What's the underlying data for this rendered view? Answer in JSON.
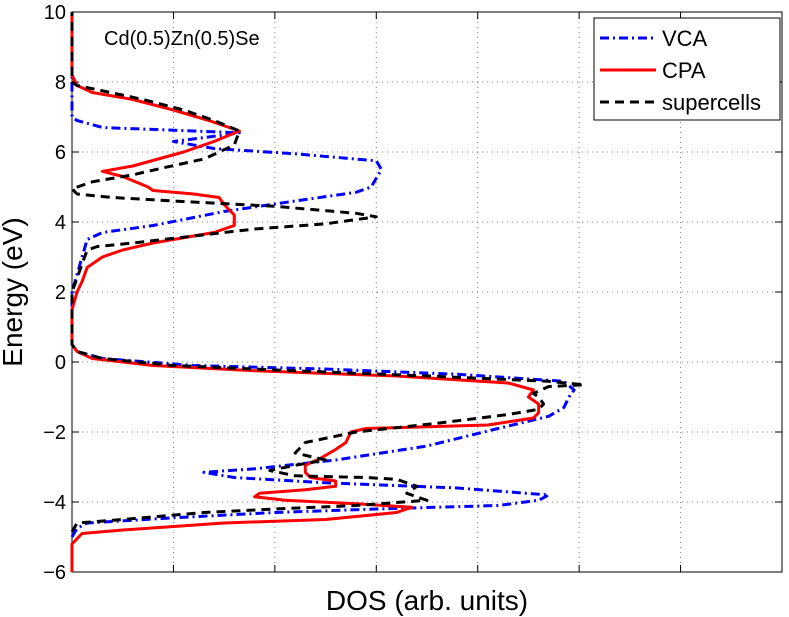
{
  "chart_data": {
    "type": "line",
    "title": "",
    "annotation": "Cd(0.5)Zn(0.5)Se",
    "xlabel": "DOS (arb. units)",
    "ylabel": "Energy (eV)",
    "xlim": [
      0,
      7
    ],
    "ylim": [
      -6,
      10
    ],
    "x_ticks": [
      0,
      1,
      2,
      3,
      4,
      5,
      6,
      7
    ],
    "y_ticks": [
      -6,
      -4,
      -2,
      0,
      2,
      4,
      6,
      8,
      10
    ],
    "y_tick_labels": [
      "−6",
      "−4",
      "−2",
      "0",
      "2",
      "4",
      "6",
      "8",
      "10"
    ],
    "grid": true,
    "legend_position": "top-right",
    "series": [
      {
        "name": "VCA",
        "color": "#0000ff",
        "style": "dashdot",
        "points": [
          [
            0.0,
            -5.0
          ],
          [
            0.05,
            -4.75
          ],
          [
            0.15,
            -4.6
          ],
          [
            1.0,
            -4.45
          ],
          [
            2.0,
            -4.3
          ],
          [
            3.0,
            -4.2
          ],
          [
            4.2,
            -4.1
          ],
          [
            4.6,
            -3.95
          ],
          [
            4.7,
            -3.8
          ],
          [
            3.8,
            -3.6
          ],
          [
            2.5,
            -3.45
          ],
          [
            1.6,
            -3.3
          ],
          [
            1.3,
            -3.15
          ],
          [
            1.8,
            -3.05
          ],
          [
            2.6,
            -2.8
          ],
          [
            3.5,
            -2.4
          ],
          [
            4.2,
            -1.9
          ],
          [
            4.7,
            -1.55
          ],
          [
            4.85,
            -1.3
          ],
          [
            4.9,
            -1.0
          ],
          [
            4.95,
            -0.8
          ],
          [
            4.85,
            -0.55
          ],
          [
            3.8,
            -0.35
          ],
          [
            2.5,
            -0.2
          ],
          [
            1.2,
            -0.1
          ],
          [
            0.3,
            0.1
          ],
          [
            0.05,
            0.3
          ],
          [
            0.0,
            0.5
          ],
          [
            0.0,
            2.0
          ],
          [
            0.05,
            2.5
          ],
          [
            0.1,
            3.0
          ],
          [
            0.15,
            3.5
          ],
          [
            0.3,
            3.7
          ],
          [
            0.8,
            3.9
          ],
          [
            1.5,
            4.3
          ],
          [
            2.2,
            4.6
          ],
          [
            2.8,
            4.85
          ],
          [
            2.95,
            5.0
          ],
          [
            3.05,
            5.5
          ],
          [
            3.0,
            5.75
          ],
          [
            2.2,
            5.95
          ],
          [
            1.4,
            6.1
          ],
          [
            1.0,
            6.3
          ],
          [
            1.4,
            6.45
          ],
          [
            1.65,
            6.55
          ],
          [
            1.2,
            6.6
          ],
          [
            0.3,
            6.7
          ],
          [
            0.05,
            6.9
          ],
          [
            0.0,
            7.0
          ],
          [
            0.0,
            8.0
          ],
          [
            0.0,
            10.0
          ]
        ]
      },
      {
        "name": "CPA",
        "color": "#ff0000",
        "style": "solid",
        "points": [
          [
            0.0,
            -6.0
          ],
          [
            0.0,
            -5.2
          ],
          [
            0.1,
            -4.9
          ],
          [
            0.5,
            -4.8
          ],
          [
            1.5,
            -4.6
          ],
          [
            2.5,
            -4.5
          ],
          [
            3.2,
            -4.3
          ],
          [
            3.35,
            -4.15
          ],
          [
            2.8,
            -4.05
          ],
          [
            2.1,
            -3.95
          ],
          [
            1.8,
            -3.85
          ],
          [
            1.85,
            -3.75
          ],
          [
            2.3,
            -3.65
          ],
          [
            2.6,
            -3.55
          ],
          [
            2.6,
            -3.4
          ],
          [
            2.35,
            -3.3
          ],
          [
            2.3,
            -3.15
          ],
          [
            2.3,
            -2.95
          ],
          [
            2.45,
            -2.75
          ],
          [
            2.6,
            -2.5
          ],
          [
            2.7,
            -2.3
          ],
          [
            2.75,
            -2.0
          ],
          [
            2.9,
            -1.9
          ],
          [
            4.1,
            -1.8
          ],
          [
            4.55,
            -1.6
          ],
          [
            4.6,
            -1.45
          ],
          [
            4.6,
            -1.2
          ],
          [
            4.5,
            -1.0
          ],
          [
            4.55,
            -0.8
          ],
          [
            4.3,
            -0.6
          ],
          [
            3.2,
            -0.4
          ],
          [
            1.8,
            -0.25
          ],
          [
            0.8,
            -0.1
          ],
          [
            0.2,
            0.1
          ],
          [
            0.05,
            0.3
          ],
          [
            0.0,
            0.5
          ],
          [
            0.0,
            1.5
          ],
          [
            0.05,
            2.0
          ],
          [
            0.1,
            2.3
          ],
          [
            0.15,
            2.7
          ],
          [
            0.3,
            3.0
          ],
          [
            0.5,
            3.2
          ],
          [
            0.8,
            3.4
          ],
          [
            1.4,
            3.7
          ],
          [
            1.6,
            3.9
          ],
          [
            1.6,
            4.2
          ],
          [
            1.5,
            4.5
          ],
          [
            1.45,
            4.7
          ],
          [
            1.2,
            4.8
          ],
          [
            0.8,
            4.9
          ],
          [
            0.75,
            5.0
          ],
          [
            0.5,
            5.3
          ],
          [
            0.3,
            5.45
          ],
          [
            0.6,
            5.6
          ],
          [
            0.85,
            5.8
          ],
          [
            1.1,
            6.0
          ],
          [
            1.4,
            6.3
          ],
          [
            1.65,
            6.6
          ],
          [
            1.35,
            6.9
          ],
          [
            1.0,
            7.2
          ],
          [
            0.6,
            7.5
          ],
          [
            0.2,
            7.7
          ],
          [
            0.05,
            7.9
          ],
          [
            0.0,
            8.2
          ],
          [
            0.0,
            10.0
          ]
        ]
      },
      {
        "name": "supercells",
        "color": "#000000",
        "style": "dashed",
        "points": [
          [
            0.0,
            -4.85
          ],
          [
            0.05,
            -4.6
          ],
          [
            0.5,
            -4.5
          ],
          [
            1.3,
            -4.3
          ],
          [
            2.0,
            -4.2
          ],
          [
            2.8,
            -4.1
          ],
          [
            3.5,
            -3.95
          ],
          [
            3.3,
            -3.75
          ],
          [
            3.4,
            -3.55
          ],
          [
            3.2,
            -3.35
          ],
          [
            2.9,
            -3.3
          ],
          [
            2.2,
            -3.25
          ],
          [
            1.95,
            -3.1
          ],
          [
            2.2,
            -2.95
          ],
          [
            2.5,
            -2.8
          ],
          [
            2.2,
            -2.6
          ],
          [
            2.3,
            -2.3
          ],
          [
            2.8,
            -2.0
          ],
          [
            3.6,
            -1.75
          ],
          [
            4.3,
            -1.5
          ],
          [
            4.6,
            -1.35
          ],
          [
            4.65,
            -1.2
          ],
          [
            4.6,
            -1.0
          ],
          [
            4.55,
            -0.9
          ],
          [
            4.7,
            -0.7
          ],
          [
            5.05,
            -0.65
          ],
          [
            4.7,
            -0.55
          ],
          [
            3.5,
            -0.4
          ],
          [
            2.2,
            -0.25
          ],
          [
            1.0,
            -0.1
          ],
          [
            0.3,
            0.1
          ],
          [
            0.05,
            0.3
          ],
          [
            0.0,
            0.5
          ],
          [
            0.0,
            2.0
          ],
          [
            0.05,
            2.4
          ],
          [
            0.1,
            2.8
          ],
          [
            0.15,
            3.2
          ],
          [
            0.25,
            3.3
          ],
          [
            0.6,
            3.4
          ],
          [
            1.2,
            3.6
          ],
          [
            1.8,
            3.8
          ],
          [
            2.5,
            3.95
          ],
          [
            3.0,
            4.15
          ],
          [
            2.8,
            4.25
          ],
          [
            2.0,
            4.45
          ],
          [
            1.0,
            4.6
          ],
          [
            0.4,
            4.7
          ],
          [
            0.05,
            4.8
          ],
          [
            0.0,
            4.95
          ],
          [
            0.2,
            5.15
          ],
          [
            0.6,
            5.35
          ],
          [
            0.9,
            5.55
          ],
          [
            1.3,
            5.8
          ],
          [
            1.6,
            6.2
          ],
          [
            1.65,
            6.6
          ],
          [
            1.4,
            6.9
          ],
          [
            1.1,
            7.2
          ],
          [
            0.7,
            7.5
          ],
          [
            0.3,
            7.75
          ],
          [
            0.05,
            7.9
          ],
          [
            0.0,
            8.0
          ],
          [
            0.0,
            10.0
          ]
        ]
      }
    ]
  }
}
